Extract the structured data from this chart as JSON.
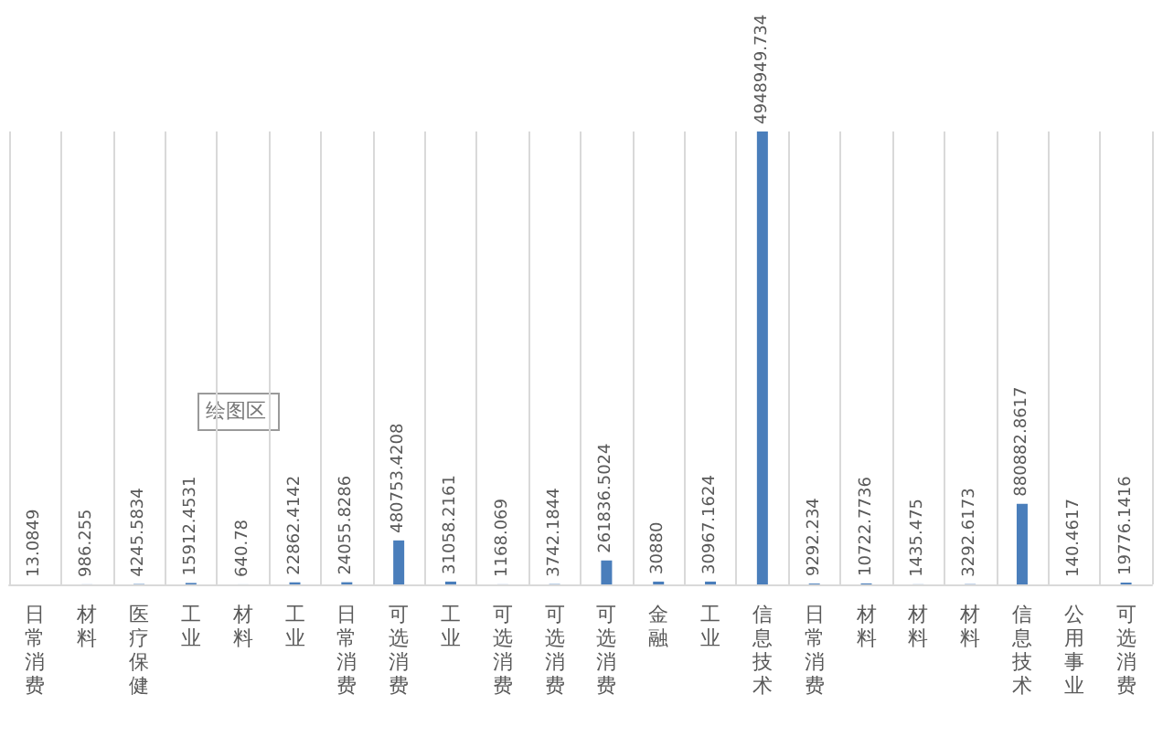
{
  "chart_data": {
    "type": "bar",
    "categories": [
      "日常消费",
      "材料",
      "医疗保健",
      "工业",
      "材料",
      "工业",
      "日常消费",
      "可选消费",
      "工业",
      "可选消费",
      "可选消费",
      "可选消费",
      "金融",
      "工业",
      "信息技术",
      "日常消费",
      "材料",
      "材料",
      "材料",
      "信息技术",
      "公用事业",
      "可选消费"
    ],
    "values": [
      13.0849,
      986.255,
      4245.5834,
      15912.4531,
      640.78,
      22862.4142,
      24055.8286,
      480753.4208,
      31058.2161,
      1168.069,
      3742.1844,
      261836.5024,
      30880,
      30967.1624,
      4948949.734,
      9292.234,
      10722.7736,
      1435.475,
      3292.6173,
      880882.8617,
      140.4617,
      19776.1416
    ],
    "color": "#4a7ebb",
    "data_labels": true,
    "grid": "x",
    "annotations": [
      "绘图区"
    ]
  }
}
